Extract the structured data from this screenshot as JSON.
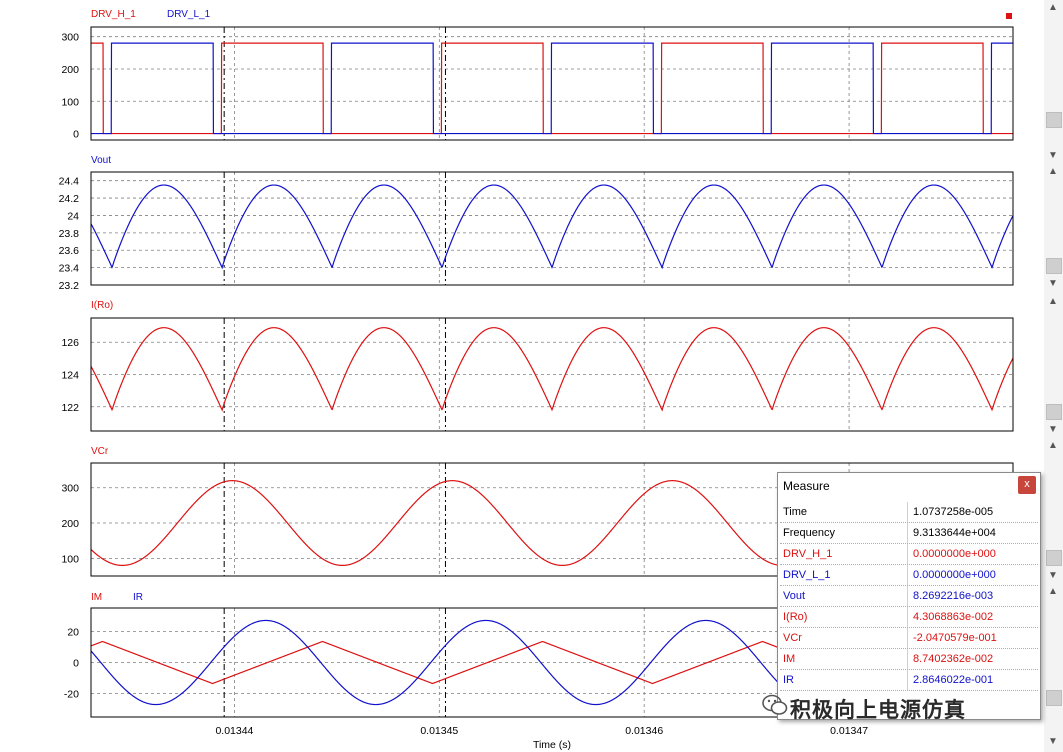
{
  "colors": {
    "red": "#dd1111",
    "blue": "#1111cc",
    "grid": "#808080"
  },
  "xaxis": {
    "label": "Time (s)",
    "range": [
      0.013433,
      0.013478
    ],
    "ticks": [
      0.01344,
      0.01345,
      0.01346,
      0.01347
    ],
    "tick_labels": [
      "0.01344",
      "0.01345",
      "0.01346",
      "0.01347"
    ],
    "cursors": [
      0.0134395,
      0.0134503
    ]
  },
  "chart_data": [
    {
      "type": "line",
      "panel": "drive",
      "series": [
        {
          "name": "DRV_H_1",
          "color": "#dd1111"
        },
        {
          "name": "DRV_L_1",
          "color": "#1111cc"
        }
      ],
      "ylim": [
        -20,
        330
      ],
      "yticks": [
        0,
        100,
        200,
        300
      ],
      "high_level": 280,
      "period": 1.07373e-05,
      "first_rise_L": 0.0134338,
      "duty_gap": 2e-07
    },
    {
      "type": "line",
      "panel": "vout",
      "series": [
        {
          "name": "Vout",
          "color": "#1111cc"
        }
      ],
      "ylim": [
        23.2,
        24.5
      ],
      "yticks": [
        23.2,
        23.4,
        23.6,
        23.8,
        24,
        24.2,
        24.4
      ],
      "min": 23.4,
      "max": 24.35,
      "period": 5.3686e-06,
      "first_min": 0.0134394
    },
    {
      "type": "line",
      "panel": "iro",
      "series": [
        {
          "name": "I(Ro)",
          "color": "#dd1111"
        }
      ],
      "ylim": [
        120.5,
        127.5
      ],
      "yticks": [
        122,
        124,
        126
      ],
      "min": 121.8,
      "max": 126.9,
      "period": 5.3686e-06,
      "first_min": 0.0134394
    },
    {
      "type": "line",
      "panel": "vcr",
      "series": [
        {
          "name": "VCr",
          "color": "#dd1111"
        }
      ],
      "ylim": [
        50,
        370
      ],
      "yticks": [
        100,
        200,
        300
      ],
      "min": 80,
      "max": 320,
      "period": 1.07373e-05,
      "first_max": 0.0134399
    },
    {
      "type": "line",
      "panel": "tank",
      "series": [
        {
          "name": "IM",
          "color": "#dd1111"
        },
        {
          "name": "IR",
          "color": "#1111cc"
        }
      ],
      "ylim": [
        -35,
        35
      ],
      "yticks": [
        -20,
        0,
        20
      ],
      "im_amp": 13.5,
      "ir_amp": 27,
      "period": 1.07373e-05,
      "first_im_max": 0.0134443
    }
  ],
  "measure": {
    "title": "Measure",
    "close": "x",
    "rows": [
      {
        "label": "Time",
        "value": "1.0737258e-005",
        "color": "#000000"
      },
      {
        "label": "Frequency",
        "value": "9.3133644e+004",
        "color": "#000000"
      },
      {
        "label": "DRV_H_1",
        "value": "0.0000000e+000",
        "color": "#dd1111"
      },
      {
        "label": "DRV_L_1",
        "value": "0.0000000e+000",
        "color": "#1111cc"
      },
      {
        "label": "Vout",
        "value": "8.2692216e-003",
        "color": "#1111cc"
      },
      {
        "label": "I(Ro)",
        "value": "4.3068863e-002",
        "color": "#dd1111"
      },
      {
        "label": "VCr",
        "value": "-2.0470579e-001",
        "color": "#dd1111"
      },
      {
        "label": "IM",
        "value": "8.7402362e-002",
        "color": "#dd1111"
      },
      {
        "label": "IR",
        "value": "2.8646022e-001",
        "color": "#1111cc"
      }
    ]
  },
  "watermark": {
    "text": "积极向上电源仿真",
    "icon": "wechat-icon"
  },
  "scrollbar": {
    "up_arrow": "▲",
    "down_arrow": "▼"
  }
}
